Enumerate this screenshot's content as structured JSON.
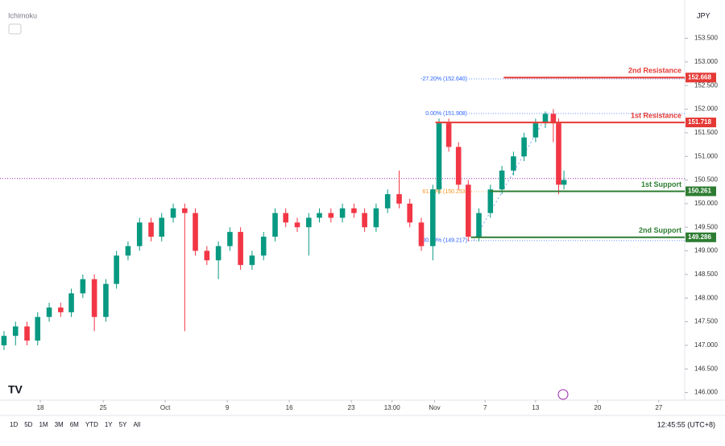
{
  "chart_data": {
    "type": "candlestick",
    "indicator": "Ichimoku",
    "currency": "JPY",
    "xlim": [
      13.45,
      90.73
    ],
    "ylim": [
      145.84,
      154.31
    ],
    "yticks": [
      {
        "value": 146,
        "label": "146.000"
      },
      {
        "value": 146.5,
        "label": "146.500"
      },
      {
        "value": 147,
        "label": "147.000"
      },
      {
        "value": 147.5,
        "label": "147.500"
      },
      {
        "value": 148,
        "label": "148.000"
      },
      {
        "value": 148.5,
        "label": "148.500"
      },
      {
        "value": 149,
        "label": "149.000"
      },
      {
        "value": 149.5,
        "label": "149.500"
      },
      {
        "value": 150,
        "label": "150.000"
      },
      {
        "value": 150.5,
        "label": "150.500"
      },
      {
        "value": 151,
        "label": "151.000"
      },
      {
        "value": 151.5,
        "label": "151.500"
      },
      {
        "value": 152,
        "label": "152.000"
      },
      {
        "value": 152.5,
        "label": "152.500"
      },
      {
        "value": 153,
        "label": "153.000"
      },
      {
        "value": 153.5,
        "label": "153.500"
      }
    ],
    "xticks": [
      {
        "value": 18,
        "label": "18"
      },
      {
        "value": 25.1,
        "label": "25"
      },
      {
        "value": 32.1,
        "label": "Oct"
      },
      {
        "value": 39.1,
        "label": "9"
      },
      {
        "value": 46.1,
        "label": "16"
      },
      {
        "value": 53.1,
        "label": "23"
      },
      {
        "value": 57.7,
        "label": "13:00"
      },
      {
        "value": 62.5,
        "label": "Nov"
      },
      {
        "value": 68.2,
        "label": "7"
      },
      {
        "value": 73.9,
        "label": "13"
      },
      {
        "value": 80.9,
        "label": "20"
      },
      {
        "value": 87.8,
        "label": "27"
      }
    ],
    "x": [
      13.9,
      15.2,
      16.5,
      17.7,
      19.0,
      20.3,
      21.5,
      22.8,
      24.1,
      25.4,
      26.6,
      27.9,
      29.2,
      30.5,
      31.7,
      33.0,
      34.3,
      35.5,
      36.8,
      38.1,
      39.4,
      40.6,
      41.9,
      43.2,
      44.5,
      45.7,
      47.0,
      48.3,
      49.5,
      50.8,
      52.1,
      53.4,
      54.6,
      55.9,
      57.2,
      58.5,
      59.7,
      61.0,
      62.3,
      63.0,
      64.1,
      65.2,
      66.3,
      67.5,
      68.8,
      70.1,
      71.4,
      72.6,
      73.9,
      75.0,
      75.9,
      76.5,
      77.1
    ],
    "open": [
      147.0,
      147.2,
      147.4,
      147.1,
      147.6,
      147.8,
      147.7,
      148.1,
      148.4,
      147.6,
      148.3,
      148.9,
      149.1,
      149.6,
      149.3,
      149.7,
      149.9,
      149.8,
      149.0,
      148.8,
      149.1,
      149.4,
      148.7,
      148.9,
      149.3,
      149.8,
      149.6,
      149.5,
      149.7,
      149.8,
      149.7,
      149.9,
      149.8,
      149.5,
      149.9,
      150.2,
      150.0,
      149.6,
      149.1,
      150.3,
      151.7,
      151.2,
      150.4,
      149.3,
      149.8,
      150.3,
      150.7,
      151.0,
      151.4,
      151.7,
      151.9,
      151.7,
      150.4
    ],
    "high": [
      147.3,
      147.5,
      147.5,
      147.7,
      147.9,
      147.9,
      148.2,
      148.5,
      148.5,
      148.4,
      149.0,
      149.2,
      149.7,
      149.7,
      149.8,
      150.0,
      150.0,
      149.9,
      149.1,
      149.2,
      149.5,
      149.5,
      149.0,
      149.4,
      149.9,
      149.9,
      149.7,
      149.8,
      149.9,
      149.9,
      150.0,
      150.0,
      149.9,
      150.0,
      150.3,
      150.7,
      150.1,
      149.7,
      150.4,
      151.8,
      151.8,
      151.3,
      150.5,
      149.9,
      150.4,
      150.8,
      151.1,
      151.5,
      151.8,
      151.95,
      152.0,
      151.8,
      150.7
    ],
    "low": [
      146.9,
      147.0,
      147.0,
      147.0,
      147.5,
      147.6,
      147.6,
      148.0,
      147.3,
      147.5,
      148.2,
      148.8,
      149.0,
      149.2,
      149.2,
      149.6,
      147.3,
      148.9,
      148.7,
      148.4,
      149.0,
      148.6,
      148.6,
      148.8,
      149.2,
      149.5,
      149.4,
      148.9,
      149.6,
      149.6,
      149.6,
      149.7,
      149.4,
      149.4,
      149.8,
      149.9,
      149.5,
      149.0,
      148.8,
      150.2,
      151.1,
      150.3,
      149.2,
      149.2,
      149.7,
      150.2,
      150.6,
      150.9,
      151.3,
      151.6,
      151.3,
      150.2,
      150.3
    ],
    "close": [
      147.2,
      147.4,
      147.1,
      147.6,
      147.8,
      147.7,
      148.1,
      148.4,
      147.6,
      148.3,
      148.9,
      149.1,
      149.6,
      149.3,
      149.7,
      149.9,
      149.8,
      149.0,
      148.8,
      149.1,
      149.4,
      148.7,
      148.9,
      149.3,
      149.8,
      149.6,
      149.5,
      149.7,
      149.8,
      149.7,
      149.9,
      149.8,
      149.5,
      149.9,
      150.2,
      150.0,
      149.6,
      149.1,
      150.3,
      151.7,
      151.2,
      150.4,
      149.3,
      149.8,
      150.3,
      150.7,
      151.0,
      151.4,
      151.7,
      151.9,
      151.7,
      150.4,
      150.5
    ],
    "up_color": "#089981",
    "down_color": "#f23645",
    "current_price": 150.53,
    "levels": [
      {
        "label": "2nd Resistance",
        "value": 152.668,
        "color": "#e53935",
        "x_start": 70.3
      },
      {
        "label": "1st Resistance",
        "value": 151.718,
        "color": "#e53935",
        "x_start": 62.6
      },
      {
        "label": "1st Support",
        "value": 150.261,
        "color": "#2e7d32",
        "x_start": 68.7
      },
      {
        "label": "2nd Support",
        "value": 149.286,
        "color": "#2e7d32",
        "x_start": 66.6
      }
    ],
    "fib_labels": [
      {
        "label": "-27.20% (152.640)",
        "value": 152.64,
        "color": "#2962ff"
      },
      {
        "label": "0.00% (151.908)",
        "value": 151.908,
        "color": "#2962ff"
      },
      {
        "label": "61.80% (150.253)",
        "value": 150.253,
        "color": "#f7931a"
      },
      {
        "label": "100.00% (149.217)",
        "value": 149.217,
        "color": "#2962ff"
      }
    ],
    "ranges": [
      "1D",
      "5D",
      "1M",
      "3M",
      "6M",
      "YTD",
      "1Y",
      "5Y",
      "All"
    ],
    "clock": "12:45:55 (UTC+8)"
  }
}
